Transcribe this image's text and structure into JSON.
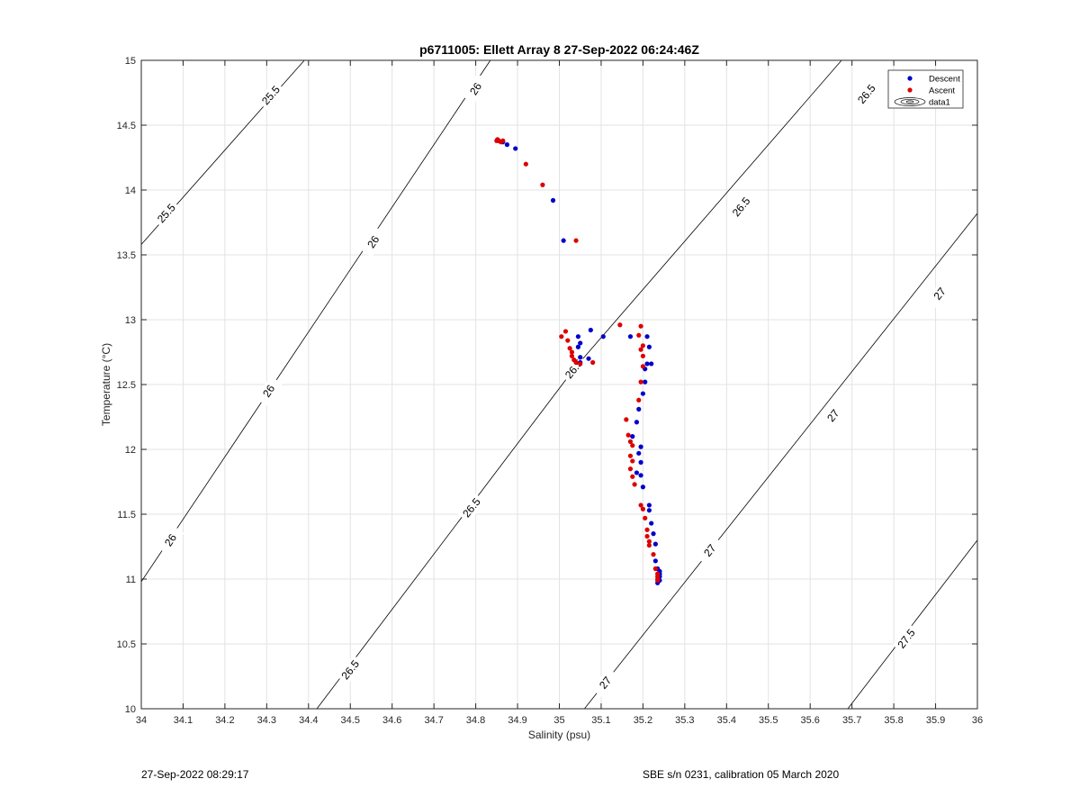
{
  "footer": {
    "timestamp": "27-Sep-2022 08:29:17",
    "calibration": "SBE s/n 0231, calibration 05 March 2020"
  },
  "chart_data": {
    "type": "scatter",
    "title": "p6711005: Ellett Array 8 27-Sep-2022 06:24:46Z",
    "xlabel": "Salinity (psu)",
    "ylabel": "Temperature (°C)",
    "xlim": [
      34,
      36
    ],
    "ylim": [
      10,
      15
    ],
    "xticks": [
      34,
      34.1,
      34.2,
      34.3,
      34.4,
      34.5,
      34.6,
      34.7,
      34.8,
      34.9,
      35,
      35.1,
      35.2,
      35.3,
      35.4,
      35.5,
      35.6,
      35.7,
      35.8,
      35.9,
      36
    ],
    "yticks": [
      10,
      10.5,
      11,
      11.5,
      12,
      12.5,
      13,
      13.5,
      14,
      14.5,
      15
    ],
    "grid": true,
    "legend": {
      "placement": "top-right",
      "entries": [
        {
          "label": "Descent",
          "color": "#0000cc",
          "marker": "dot"
        },
        {
          "label": "Ascent",
          "color": "#dd0000",
          "marker": "dot"
        },
        {
          "label": "data1",
          "marker": "contour"
        }
      ]
    },
    "contours": [
      {
        "level": "25.5",
        "points": [
          [
            34.0,
            13.58
          ],
          [
            34.39,
            15.0
          ]
        ],
        "labels": [
          [
            34.06,
            13.82
          ],
          [
            34.31,
            14.73
          ]
        ]
      },
      {
        "level": "26",
        "points": [
          [
            34.0,
            10.98
          ],
          [
            34.835,
            15.0
          ]
        ],
        "labels": [
          [
            34.07,
            11.3
          ],
          [
            34.305,
            12.45
          ],
          [
            34.555,
            13.6
          ],
          [
            34.8,
            14.78
          ]
        ]
      },
      {
        "level": "26.5",
        "points": [
          [
            34.42,
            10.0
          ],
          [
            35.035,
            12.62
          ],
          [
            35.675,
            15.0
          ]
        ],
        "labels": [
          [
            34.5,
            10.3
          ],
          [
            34.79,
            11.55
          ],
          [
            35.035,
            12.62
          ],
          [
            35.435,
            13.87
          ],
          [
            35.735,
            14.74
          ]
        ]
      },
      {
        "level": "27",
        "points": [
          [
            35.06,
            10.0
          ],
          [
            36.0,
            13.82
          ]
        ],
        "labels": [
          [
            35.11,
            10.2
          ],
          [
            35.36,
            11.22
          ],
          [
            35.655,
            12.26
          ],
          [
            35.91,
            13.2
          ]
        ]
      },
      {
        "level": "27.5",
        "points": [
          [
            35.69,
            10.0
          ],
          [
            36.0,
            11.3
          ]
        ],
        "labels": [
          [
            35.83,
            10.54
          ]
        ]
      }
    ],
    "series": [
      {
        "name": "Descent",
        "color": "#0000cc",
        "x": [
          34.855,
          34.865,
          34.875,
          34.895,
          34.985,
          35.01,
          35.075,
          35.105,
          35.045,
          35.05,
          35.045,
          35.07,
          35.05,
          35.05,
          35.17,
          35.21,
          35.215,
          35.21,
          35.22,
          35.205,
          35.205,
          35.2,
          35.19,
          35.185,
          35.175,
          35.195,
          35.19,
          35.195,
          35.185,
          35.195,
          35.2,
          35.215,
          35.215,
          35.22,
          35.225,
          35.23,
          35.23,
          35.235,
          35.24,
          35.24,
          35.24,
          35.24,
          35.235
        ],
        "y": [
          14.38,
          14.37,
          14.35,
          14.32,
          13.92,
          13.61,
          12.92,
          12.87,
          12.87,
          12.82,
          12.79,
          12.7,
          12.67,
          12.71,
          12.87,
          12.87,
          12.79,
          12.66,
          12.66,
          12.62,
          12.52,
          12.43,
          12.31,
          12.21,
          12.1,
          12.02,
          11.97,
          11.9,
          11.82,
          11.8,
          11.71,
          11.57,
          11.53,
          11.43,
          11.35,
          11.27,
          11.14,
          11.08,
          11.06,
          11.04,
          11.02,
          10.99,
          10.97
        ]
      },
      {
        "name": "Ascent",
        "color": "#dd0000",
        "x": [
          34.85,
          34.852,
          34.855,
          34.86,
          34.865,
          34.92,
          34.96,
          35.04,
          35.015,
          35.005,
          35.02,
          35.025,
          35.03,
          35.03,
          35.035,
          35.04,
          35.05,
          35.08,
          35.145,
          35.195,
          35.19,
          35.2,
          35.195,
          35.2,
          35.2,
          35.195,
          35.19,
          35.16,
          35.165,
          35.17,
          35.175,
          35.17,
          35.175,
          35.17,
          35.175,
          35.18,
          35.195,
          35.2,
          35.205,
          35.21,
          35.21,
          35.215,
          35.215,
          35.225,
          35.23,
          35.235,
          35.235,
          35.235,
          35.235
        ],
        "y": [
          14.38,
          14.39,
          14.38,
          14.37,
          14.38,
          14.2,
          14.04,
          13.61,
          12.91,
          12.87,
          12.84,
          12.78,
          12.75,
          12.72,
          12.69,
          12.67,
          12.66,
          12.67,
          12.96,
          12.95,
          12.88,
          12.8,
          12.77,
          12.72,
          12.64,
          12.52,
          12.38,
          12.23,
          12.11,
          12.06,
          12.03,
          11.95,
          11.91,
          11.85,
          11.79,
          11.73,
          11.57,
          11.54,
          11.47,
          11.38,
          11.33,
          11.29,
          11.26,
          11.19,
          11.08,
          11.04,
          11.02,
          11.0,
          10.99
        ]
      }
    ]
  }
}
